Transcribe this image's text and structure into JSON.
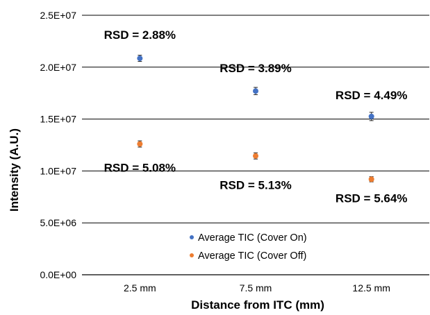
{
  "chart_data": {
    "type": "scatter",
    "title": "",
    "xlabel": "Distance from ITC (mm)",
    "ylabel": "Intensity (A.U.)",
    "categories": [
      "2.5 mm",
      "7.5 mm",
      "12.5 mm"
    ],
    "ylim": [
      0,
      25000000
    ],
    "yticks": [
      {
        "value": 0,
        "label": "0.0E+00"
      },
      {
        "value": 5000000,
        "label": "5.0E+06"
      },
      {
        "value": 10000000,
        "label": "1.0E+07"
      },
      {
        "value": 15000000,
        "label": "1.5E+07"
      },
      {
        "value": 20000000,
        "label": "2.0E+07"
      },
      {
        "value": 25000000,
        "label": "2.5E+07"
      }
    ],
    "grid": "horizontal",
    "legend_position": "bottom-center",
    "series": [
      {
        "name": "Average TIC (Cover On)",
        "color": "#4472C4",
        "values": [
          20850000,
          17700000,
          15250000
        ],
        "errors": [
          300000,
          350000,
          400000
        ],
        "annotations": [
          "RSD = 2.88%",
          "RSD = 3.89%",
          "RSD = 4.49%"
        ]
      },
      {
        "name": "Average TIC (Cover Off)",
        "color": "#ED7D31",
        "values": [
          12600000,
          11450000,
          9200000
        ],
        "errors": [
          300000,
          300000,
          250000
        ],
        "annotations": [
          "RSD = 5.08%",
          "RSD = 5.13%",
          "RSD = 5.64%"
        ]
      }
    ]
  }
}
